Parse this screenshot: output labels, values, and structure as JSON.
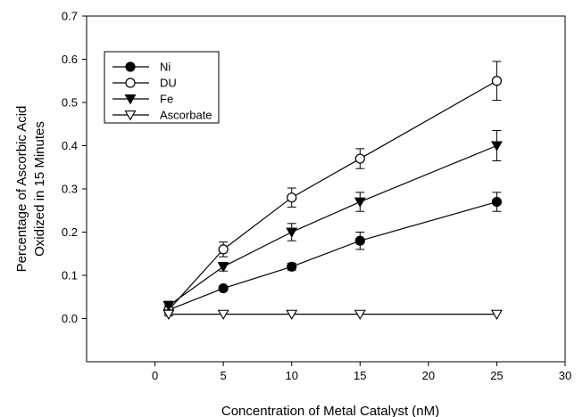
{
  "chart_data": {
    "type": "line",
    "title": "",
    "xlabel": "Concentration of Metal Catalyst (nM)",
    "ylabel_lines": [
      "Percentage of Ascorbic Acid",
      "Oxidized in 15 Minutes"
    ],
    "xlim": [
      -5,
      30
    ],
    "ylim": [
      -0.1,
      0.7
    ],
    "x_ticks": [
      0,
      5,
      10,
      15,
      20,
      25,
      30
    ],
    "x_tick_labels": [
      "0",
      "5",
      "10",
      "15",
      "20",
      "25",
      "30"
    ],
    "y_ticks": [
      0.0,
      0.1,
      0.2,
      0.3,
      0.4,
      0.5,
      0.6,
      0.7
    ],
    "y_tick_labels": [
      "0.0",
      "0.1",
      "0.2",
      "0.3",
      "0.4",
      "0.5",
      "0.6",
      "0.7"
    ],
    "grid": false,
    "legend_position": "top-left",
    "series": [
      {
        "name": "Ni",
        "marker": "circle-filled",
        "color": "#000000",
        "x": [
          1,
          5,
          10,
          15,
          25
        ],
        "y": [
          0.02,
          0.07,
          0.12,
          0.18,
          0.27
        ],
        "err": [
          0.01,
          0.005,
          0.008,
          0.02,
          0.022
        ]
      },
      {
        "name": "DU",
        "marker": "circle-open",
        "color": "#000000",
        "x": [
          1,
          5,
          10,
          15,
          25
        ],
        "y": [
          0.02,
          0.16,
          0.28,
          0.37,
          0.55
        ],
        "err": [
          0.01,
          0.017,
          0.022,
          0.023,
          0.045
        ]
      },
      {
        "name": "Fe",
        "marker": "triangle-down-filled",
        "color": "#000000",
        "x": [
          1,
          5,
          10,
          15,
          25
        ],
        "y": [
          0.03,
          0.12,
          0.2,
          0.27,
          0.4
        ],
        "err": [
          0.01,
          0.01,
          0.02,
          0.022,
          0.035
        ]
      },
      {
        "name": "Ascorbate",
        "marker": "triangle-down-open",
        "color": "#000000",
        "x": [
          1,
          5,
          10,
          15,
          25
        ],
        "y": [
          0.01,
          0.01,
          0.01,
          0.01,
          0.01
        ],
        "err": [
          0.004,
          0.0,
          0.0,
          0.0,
          0.0
        ]
      }
    ]
  }
}
